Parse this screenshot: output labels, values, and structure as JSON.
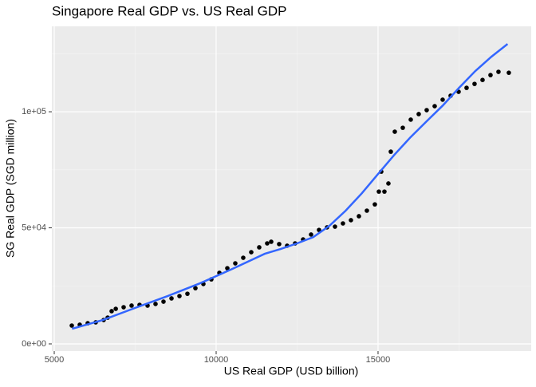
{
  "chart_data": {
    "type": "scatter",
    "title": "Singapore Real GDP vs. US Real GDP",
    "x_label": "US Real GDP (USD billion)",
    "y_label": "SG Real GDP (SGD million)",
    "xlim": [
      4926,
      19730
    ],
    "ylim": [
      -3100,
      136800
    ],
    "xticks": [
      5000,
      10000,
      15000
    ],
    "yticks": [
      {
        "value": 0,
        "label": "0e+00"
      },
      {
        "value": 50000,
        "label": "5e+04"
      },
      {
        "value": 100000,
        "label": "1e+05"
      }
    ],
    "xminorticks": [
      7500,
      12500,
      17500
    ],
    "yminorticks": [
      25000,
      75000,
      125000
    ],
    "grid": true,
    "series": [
      {
        "kind": "scatter",
        "color": "#000000",
        "x": [
          5542,
          5788,
          6034,
          6281,
          6527,
          6650,
          6773,
          6900,
          7143,
          7389,
          7635,
          7882,
          8128,
          8374,
          8621,
          8867,
          9113,
          9360,
          9606,
          9852,
          10100,
          10345,
          10591,
          10837,
          11084,
          11330,
          11576,
          11700,
          11946,
          12192,
          12438,
          12685,
          12931,
          13177,
          13424,
          13670,
          13916,
          14163,
          14409,
          14655,
          14901,
          15025,
          15099,
          15197,
          15320,
          15394,
          15517,
          15764,
          16010,
          16256,
          16502,
          16749,
          16995,
          17241,
          17488,
          17734,
          17980,
          18227,
          18473,
          18719,
          19039
        ],
        "values": [
          7900,
          8250,
          8900,
          9280,
          10300,
          11300,
          14100,
          15100,
          15800,
          16500,
          16800,
          16500,
          17200,
          18200,
          19600,
          20600,
          21600,
          24000,
          25800,
          27800,
          30600,
          32600,
          34700,
          37100,
          39500,
          41600,
          43300,
          44000,
          43000,
          42300,
          43300,
          45000,
          47100,
          49100,
          50200,
          50500,
          51900,
          53300,
          55000,
          57400,
          60100,
          65600,
          74200,
          65600,
          69100,
          82800,
          91400,
          93100,
          96600,
          99000,
          100700,
          102400,
          105200,
          106900,
          108600,
          110300,
          112000,
          113700,
          115800,
          117200,
          116800
        ]
      },
      {
        "kind": "line",
        "color": "#3366ff",
        "x": [
          5550,
          6500,
          7500,
          8500,
          9500,
          10500,
          11500,
          12000,
          12500,
          13000,
          13500,
          14000,
          14500,
          15000,
          15500,
          16000,
          16500,
          17000,
          17500,
          18000,
          18500,
          19000
        ],
        "values": [
          6500,
          10300,
          15500,
          20600,
          26100,
          32300,
          38800,
          40900,
          43300,
          46000,
          50900,
          57400,
          64900,
          73200,
          81400,
          89000,
          95900,
          102700,
          110300,
          117500,
          123700,
          129200
        ]
      }
    ]
  }
}
